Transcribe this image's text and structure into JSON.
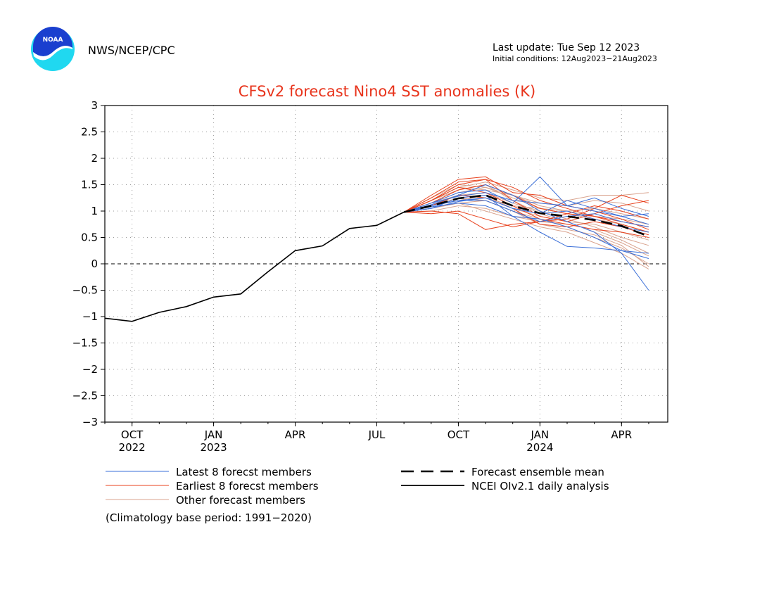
{
  "header": {
    "organization": "NWS/NCEP/CPC",
    "last_update": "Last update: Tue Sep 12 2023",
    "initial_conditions": "Initial conditions: 12Aug2023−21Aug2023",
    "logo_text": "NOAA"
  },
  "colors": {
    "title": "#e8341c",
    "latest_members": "#3a6fd8",
    "earliest_members": "#e8401c",
    "other_members": "#d9a38e",
    "analysis": "#000000",
    "mean": "#000000",
    "logo_blue": "#1a3fcf",
    "logo_cyan": "#20d8f0"
  },
  "chart_data": {
    "type": "line",
    "title": "CFSv2 forecast Nino4 SST anomalies (K)",
    "xlabel": "",
    "ylabel": "",
    "ylim": [
      -3,
      3
    ],
    "yticks": [
      -3,
      -2.5,
      -2,
      -1.5,
      -1,
      -0.5,
      0,
      0.5,
      1,
      1.5,
      2,
      2.5,
      3
    ],
    "ytick_labels": [
      "−3",
      "−2.5",
      "−2",
      "−1.5",
      "−1",
      "−0.5",
      "0",
      "0.5",
      "1",
      "1.5",
      "2",
      "2.5",
      "3"
    ],
    "xlim": [
      "2022-09",
      "2024-05"
    ],
    "xticks": [
      {
        "date": "2022-10",
        "label": "OCT",
        "year": "2022"
      },
      {
        "date": "2023-01",
        "label": "JAN",
        "year": "2023"
      },
      {
        "date": "2023-04",
        "label": "APR",
        "year": ""
      },
      {
        "date": "2023-07",
        "label": "JUL",
        "year": ""
      },
      {
        "date": "2023-10",
        "label": "OCT",
        "year": ""
      },
      {
        "date": "2024-01",
        "label": "JAN",
        "year": "2024"
      },
      {
        "date": "2024-04",
        "label": "APR",
        "year": ""
      }
    ],
    "grid": true,
    "zero_line": true,
    "series": [
      {
        "name": "NCEI OIv2.1 daily analysis",
        "style": "solid",
        "points": [
          [
            "2022-09",
            -1.03
          ],
          [
            "2022-10",
            -1.09
          ],
          [
            "2022-11",
            -0.92
          ],
          [
            "2022-12",
            -0.81
          ],
          [
            "2023-01",
            -0.63
          ],
          [
            "2023-02",
            -0.57
          ],
          [
            "2023-03",
            -0.15
          ],
          [
            "2023-04",
            0.25
          ],
          [
            "2023-05",
            0.34
          ],
          [
            "2023-06",
            0.67
          ],
          [
            "2023-07",
            0.73
          ],
          [
            "2023-08",
            0.98
          ]
        ]
      },
      {
        "name": "Forecast ensemble mean",
        "style": "dashed",
        "points": [
          [
            "2023-08",
            0.98
          ],
          [
            "2023-09",
            1.1
          ],
          [
            "2023-10",
            1.24
          ],
          [
            "2023-11",
            1.3
          ],
          [
            "2023-12",
            1.1
          ],
          [
            "2024-01",
            0.96
          ],
          [
            "2024-02",
            0.9
          ],
          [
            "2024-03",
            0.83
          ],
          [
            "2024-04",
            0.72
          ],
          [
            "2024-05",
            0.52
          ]
        ]
      },
      {
        "name": "Latest 8 forecst members",
        "style": "thin",
        "months": [
          "2023-08",
          "2023-09",
          "2023-10",
          "2023-11",
          "2023-12",
          "2024-01",
          "2024-02",
          "2024-03",
          "2024-04",
          "2024-05"
        ],
        "members": [
          [
            0.98,
            1.15,
            1.35,
            1.4,
            1.15,
            1.65,
            1.1,
            1.0,
            0.9,
            0.75
          ],
          [
            0.98,
            1.05,
            1.25,
            1.3,
            0.9,
            0.6,
            0.33,
            0.3,
            0.25,
            0.1
          ],
          [
            0.98,
            1.1,
            1.2,
            1.25,
            1.05,
            0.95,
            1.2,
            1.05,
            0.9,
            0.95
          ],
          [
            0.98,
            1.12,
            1.3,
            1.5,
            1.3,
            1.0,
            0.8,
            0.6,
            0.2,
            -0.5
          ],
          [
            0.98,
            1.08,
            1.15,
            1.1,
            0.9,
            0.85,
            0.7,
            0.5,
            0.25,
            0.2
          ],
          [
            0.98,
            1.15,
            1.28,
            1.35,
            1.2,
            1.15,
            1.1,
            1.25,
            1.05,
            0.9
          ],
          [
            0.98,
            1.1,
            1.2,
            1.2,
            1.0,
            0.8,
            0.9,
            0.95,
            0.8,
            0.7
          ],
          [
            0.98,
            1.05,
            1.18,
            1.25,
            1.05,
            0.95,
            1.0,
            0.85,
            0.7,
            0.6
          ]
        ]
      },
      {
        "name": "Earliest 8 forecst members",
        "style": "thin",
        "months": [
          "2023-08",
          "2023-09",
          "2023-10",
          "2023-11",
          "2023-12",
          "2024-01",
          "2024-02",
          "2024-03",
          "2024-04",
          "2024-05"
        ],
        "members": [
          [
            0.98,
            1.3,
            1.6,
            1.65,
            1.35,
            1.3,
            1.1,
            1.0,
            0.85,
            0.65
          ],
          [
            0.98,
            1.2,
            1.5,
            1.6,
            1.2,
            0.9,
            0.8,
            0.95,
            1.1,
            1.2
          ],
          [
            0.98,
            1.0,
            0.95,
            0.65,
            0.75,
            0.8,
            0.85,
            1.05,
            1.3,
            1.15
          ],
          [
            0.98,
            1.1,
            1.3,
            1.25,
            1.05,
            0.75,
            0.7,
            0.8,
            0.7,
            0.55
          ],
          [
            0.98,
            1.25,
            1.55,
            1.6,
            1.45,
            1.2,
            1.05,
            0.9,
            0.75,
            0.6
          ],
          [
            0.98,
            0.95,
            1.0,
            0.85,
            0.7,
            0.8,
            0.95,
            0.9,
            0.8,
            0.7
          ],
          [
            0.98,
            1.15,
            1.4,
            1.5,
            1.3,
            1.05,
            0.95,
            1.1,
            1.0,
            0.85
          ],
          [
            0.98,
            1.2,
            1.45,
            1.35,
            1.1,
            0.85,
            0.75,
            0.65,
            0.6,
            0.5
          ]
        ]
      },
      {
        "name": "Other forecast members",
        "style": "thin",
        "months": [
          "2023-08",
          "2023-09",
          "2023-10",
          "2023-11",
          "2023-12",
          "2024-01",
          "2024-02",
          "2024-03",
          "2024-04",
          "2024-05"
        ],
        "members": [
          [
            0.98,
            1.2,
            1.45,
            1.55,
            1.4,
            1.25,
            1.2,
            1.3,
            1.3,
            1.35
          ],
          [
            0.98,
            1.1,
            1.25,
            1.2,
            1.0,
            0.85,
            0.7,
            0.5,
            0.3,
            0.0
          ],
          [
            0.98,
            1.15,
            1.35,
            1.45,
            1.25,
            1.05,
            0.95,
            0.85,
            0.75,
            0.6
          ],
          [
            0.98,
            1.05,
            1.15,
            1.0,
            0.85,
            0.7,
            0.6,
            0.4,
            0.2,
            -0.1
          ],
          [
            0.98,
            1.25,
            1.5,
            1.45,
            1.3,
            1.15,
            1.1,
            1.2,
            1.15,
            1.0
          ],
          [
            0.98,
            1.1,
            1.3,
            1.35,
            1.15,
            1.0,
            0.85,
            0.7,
            0.5,
            0.35
          ],
          [
            0.98,
            1.2,
            1.4,
            1.5,
            1.2,
            0.95,
            0.8,
            0.75,
            0.6,
            0.45
          ],
          [
            0.98,
            1.0,
            1.1,
            1.05,
            0.9,
            0.8,
            0.75,
            0.65,
            0.45,
            0.2
          ],
          [
            0.98,
            1.15,
            1.3,
            1.25,
            1.1,
            1.05,
            1.0,
            1.05,
            0.95,
            0.85
          ],
          [
            0.98,
            1.2,
            1.45,
            1.4,
            1.3,
            1.1,
            1.0,
            0.9,
            0.85,
            0.75
          ],
          [
            0.98,
            1.1,
            1.2,
            1.3,
            1.05,
            0.9,
            0.8,
            0.6,
            0.4,
            0.15
          ],
          [
            0.98,
            1.05,
            1.15,
            1.2,
            1.0,
            0.75,
            0.65,
            0.55,
            0.35,
            -0.05
          ]
        ]
      }
    ],
    "legend": {
      "placement": "bottom",
      "entries": [
        {
          "label": "Latest 8 forecst members",
          "swatch": "latest"
        },
        {
          "label": "Forecast ensemble mean",
          "swatch": "mean"
        },
        {
          "label": "Earliest 8 forecst members",
          "swatch": "earliest"
        },
        {
          "label": "NCEI OIv2.1 daily analysis",
          "swatch": "analysis"
        },
        {
          "label": "Other forecast members",
          "swatch": "other"
        }
      ]
    },
    "note": "(Climatology base period: 1991−2020)"
  }
}
